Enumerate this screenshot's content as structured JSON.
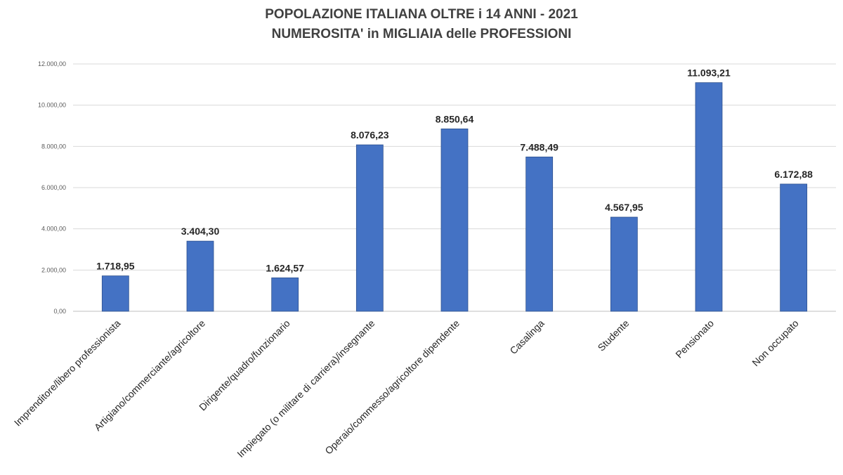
{
  "chart_data": {
    "type": "bar",
    "title": "POPOLAZIONE ITALIANA OLTRE i 14 ANNI - 2021",
    "subtitle": "NUMEROSITA' in MIGLIAIA delle PROFESSIONI",
    "xlabel": "",
    "ylabel": "",
    "ylim": [
      0,
      12000
    ],
    "grid": true,
    "legend": "none",
    "bar_color": "#4472C4",
    "yticks": [
      {
        "value": 0,
        "label": "0,00"
      },
      {
        "value": 2000,
        "label": "2.000,00"
      },
      {
        "value": 4000,
        "label": "4.000,00"
      },
      {
        "value": 6000,
        "label": "6.000,00"
      },
      {
        "value": 8000,
        "label": "8.000,00"
      },
      {
        "value": 10000,
        "label": "10.000,00"
      },
      {
        "value": 12000,
        "label": "12.000,00"
      }
    ],
    "categories": [
      "Imprenditore/libero professionista",
      "Artigiano/commerciante/agricoltore",
      "Dirigente/quadro/funzionario",
      "Impiegato (o militare di carriera)/insegnante",
      "Operaio/commesso/agricoltore dipendente",
      "Casalinga",
      "Studente",
      "Pensionato",
      "Non occupato"
    ],
    "values": [
      1718.95,
      3404.3,
      1624.57,
      8076.23,
      8850.64,
      7488.49,
      4567.95,
      11093.21,
      6172.88
    ],
    "value_labels": [
      "1.718,95",
      "3.404,30",
      "1.624,57",
      "8.076,23",
      "8.850,64",
      "7.488,49",
      "4.567,95",
      "11.093,21",
      "6.172,88"
    ]
  }
}
